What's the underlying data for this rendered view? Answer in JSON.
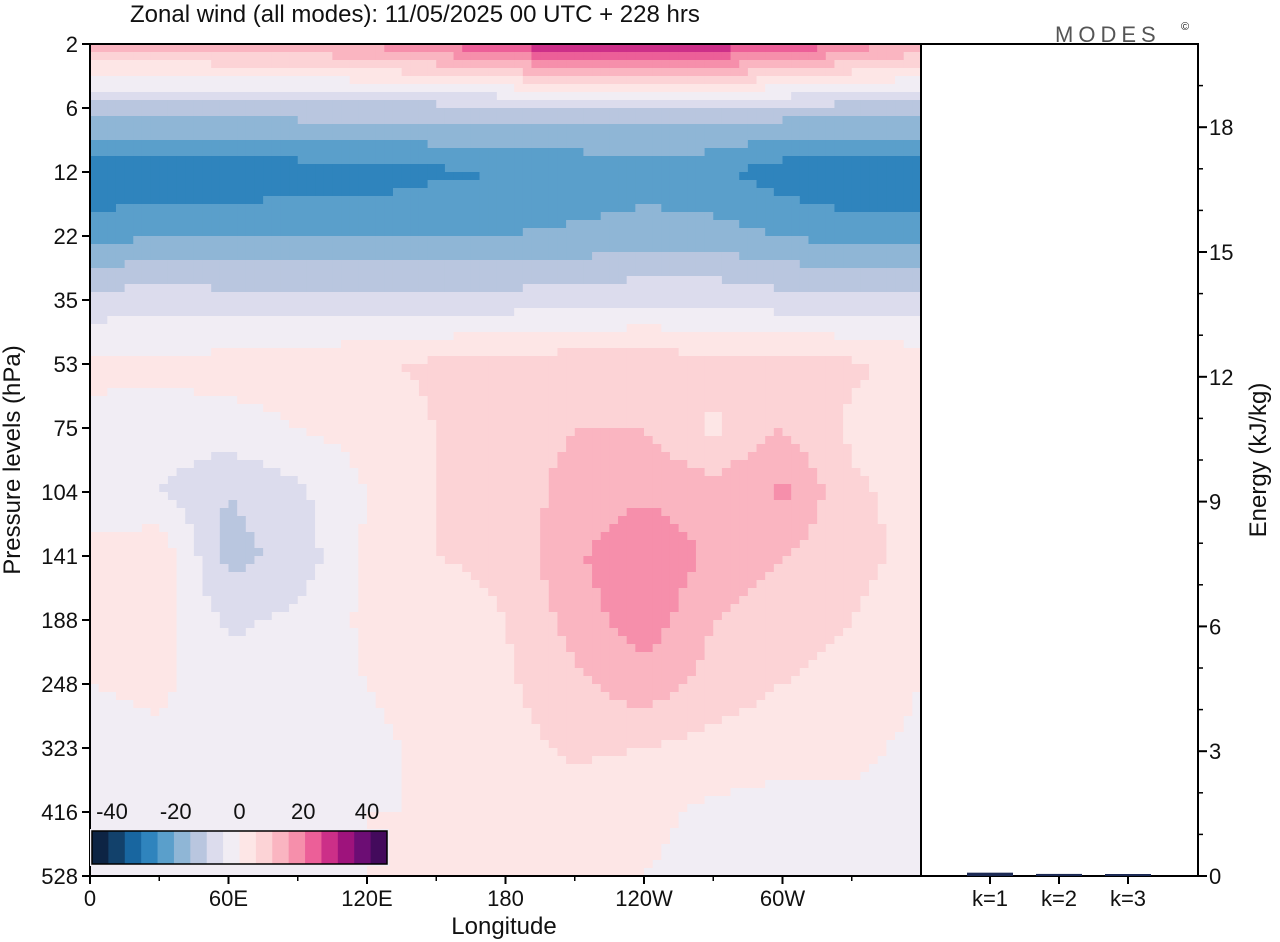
{
  "chart_data": [
    {
      "type": "heatmap",
      "title": "Zonal wind (all modes):  11/05/2025  00 UTC  + 228 hrs",
      "xlabel": "Longitude",
      "ylabel": "Pressure levels (hPa)",
      "x_ticks": [
        "0",
        "60E",
        "120E",
        "180",
        "120W",
        "60W"
      ],
      "y_ticks": [
        "2",
        "6",
        "12",
        "22",
        "35",
        "53",
        "75",
        "104",
        "141",
        "188",
        "248",
        "323",
        "416",
        "528"
      ],
      "colorbar": {
        "labels": [
          "-40",
          "-20",
          "0",
          "20",
          "40"
        ],
        "colors": [
          "#0d2444",
          "#12416b",
          "#1866a0",
          "#2f84bd",
          "#5a9fcb",
          "#8fb6d6",
          "#b9c6df",
          "#dcdced",
          "#f1edf4",
          "#fde6e6",
          "#fcd3d6",
          "#fab5c1",
          "#f68fab",
          "#ec5f98",
          "#cc2f88",
          "#9e137c",
          "#6c0d74",
          "#430a5c"
        ]
      },
      "longitudes": [
        0,
        30,
        60,
        90,
        120,
        150,
        180,
        210,
        240,
        270,
        300,
        330,
        360
      ],
      "levels": [
        2,
        6,
        12,
        22,
        35,
        53,
        75,
        104,
        141,
        188,
        248,
        323,
        416,
        528
      ],
      "values": [
        [
          12,
          12,
          13,
          14,
          16,
          20,
          26,
          30,
          30,
          28,
          26,
          18,
          14
        ],
        [
          -12,
          -12,
          -12,
          -12,
          -12,
          -12,
          -12,
          -12,
          -12,
          -12,
          -12,
          -12,
          -12
        ],
        [
          -30,
          -29,
          -30,
          -28,
          -28,
          -26,
          -25,
          -24,
          -22,
          -24,
          -28,
          -30,
          -30
        ],
        [
          -22,
          -20,
          -20,
          -20,
          -20,
          -20,
          -20,
          -19,
          -18,
          -18,
          -20,
          -22,
          -22
        ],
        [
          -8,
          -7,
          -8,
          -8,
          -8,
          -8,
          -8,
          -7,
          -6,
          -6,
          -8,
          -8,
          -8
        ],
        [
          1,
          1,
          2,
          3,
          4,
          6,
          7,
          8,
          8,
          7,
          7,
          6,
          3
        ],
        [
          -1,
          -2,
          -2,
          0,
          2,
          5,
          7,
          10,
          10,
          4,
          10,
          4,
          2
        ],
        [
          -3,
          -5,
          -10,
          -6,
          0,
          5,
          7,
          12,
          14,
          12,
          16,
          6,
          3
        ],
        [
          2,
          4,
          -12,
          -8,
          1,
          5,
          6,
          14,
          20,
          14,
          10,
          7,
          3
        ],
        [
          0,
          2,
          -6,
          -4,
          1,
          3,
          5,
          12,
          18,
          10,
          7,
          5,
          1
        ],
        [
          0,
          1,
          -3,
          -2,
          0,
          2,
          4,
          9,
          13,
          8,
          5,
          3,
          0
        ],
        [
          -2,
          -1,
          -2,
          -2,
          -1,
          1,
          3,
          6,
          5,
          3,
          2,
          1,
          -1
        ],
        [
          -3,
          -2,
          -1,
          -1,
          0,
          0,
          1,
          2,
          1,
          -1,
          -2,
          -1,
          -2
        ],
        [
          -2,
          -2,
          -1,
          0,
          0,
          0,
          0,
          1,
          0,
          -1,
          -2,
          -2,
          -2
        ]
      ]
    },
    {
      "type": "bar",
      "ylabel": "Energy (kJ/kg)",
      "y_ticks": [
        "0",
        "3",
        "6",
        "9",
        "12",
        "15",
        "18"
      ],
      "ylim": [
        0,
        20
      ],
      "categories": [
        "k=1",
        "k=2",
        "k=3"
      ],
      "values": [
        0.08,
        0.05,
        0.04
      ]
    }
  ],
  "brand": {
    "text": "MODES",
    "mark": "©"
  }
}
